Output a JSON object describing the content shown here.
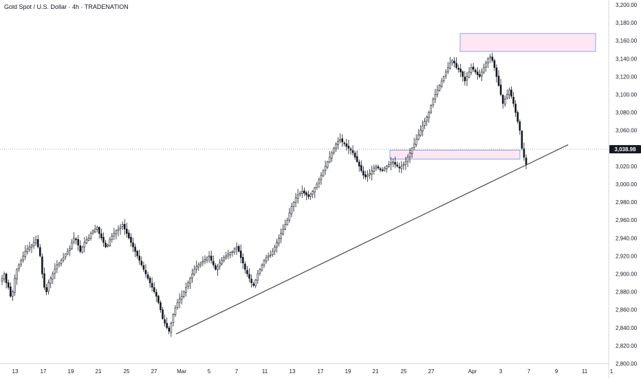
{
  "title": "Gold Spot / U.S. Dollar · 4h · TRADENATION",
  "colors": {
    "background": "#ffffff",
    "candle": "#131722",
    "zone_fill": "#fde7f2",
    "zone_stroke": "#7b8cf0",
    "trendline": "#444444",
    "price_line": "#888888",
    "price_box": "#131722"
  },
  "chart_data": {
    "type": "candlestick",
    "title": "Gold Spot / U.S. Dollar · 4h · TRADENATION",
    "y_ticks": [
      "2,800.00",
      "2,820.00",
      "2,840.00",
      "2,860.00",
      "2,880.00",
      "2,900.00",
      "2,920.00",
      "2,940.00",
      "2,960.00",
      "2,980.00",
      "3,000.00",
      "3,020.00",
      "3,040.00",
      "3,060.00",
      "3,080.00",
      "3,100.00",
      "3,120.00",
      "3,140.00",
      "3,160.00",
      "3,180.00",
      "3,200.00"
    ],
    "ylim": [
      2800,
      3200
    ],
    "x_ticks": [
      "13",
      "17",
      "19",
      "21",
      "25",
      "27",
      "Mar",
      "5",
      "7",
      "11",
      "13",
      "17",
      "19",
      "21",
      "25",
      "27",
      "Apr",
      "3",
      "7",
      "9",
      "11",
      "1"
    ],
    "current_price": 3038.98,
    "current_price_label": "3,038.98",
    "zones": [
      {
        "name": "upper-resistance-zone",
        "start": "Mar 31",
        "end": "Apr 11",
        "low": 3148,
        "high": 3168
      },
      {
        "name": "support-zone",
        "start": "Mar 24",
        "end": "Apr 4",
        "low": 3028,
        "high": 3038
      }
    ],
    "trendline": {
      "start": {
        "date": "Feb 28",
        "price": 2833
      },
      "end": {
        "date": "Apr 10",
        "price": 3044
      }
    },
    "closes": [
      2895,
      2900,
      2890,
      2885,
      2875,
      2880,
      2895,
      2905,
      2910,
      2915,
      2920,
      2925,
      2928,
      2930,
      2932,
      2935,
      2938,
      2930,
      2920,
      2900,
      2885,
      2880,
      2890,
      2895,
      2900,
      2905,
      2910,
      2912,
      2915,
      2918,
      2922,
      2925,
      2928,
      2935,
      2940,
      2938,
      2932,
      2925,
      2930,
      2935,
      2938,
      2940,
      2945,
      2948,
      2950,
      2952,
      2945,
      2940,
      2935,
      2930,
      2932,
      2938,
      2942,
      2945,
      2948,
      2950,
      2952,
      2955,
      2950,
      2945,
      2940,
      2935,
      2930,
      2925,
      2920,
      2915,
      2910,
      2905,
      2900,
      2895,
      2890,
      2885,
      2880,
      2875,
      2868,
      2860,
      2850,
      2845,
      2840,
      2836,
      2845,
      2855,
      2862,
      2868,
      2872,
      2875,
      2880,
      2885,
      2890,
      2895,
      2900,
      2905,
      2908,
      2910,
      2912,
      2914,
      2916,
      2918,
      2920,
      2915,
      2910,
      2905,
      2908,
      2912,
      2915,
      2918,
      2920,
      2922,
      2924,
      2925,
      2928,
      2930,
      2925,
      2918,
      2912,
      2905,
      2900,
      2895,
      2890,
      2887,
      2893,
      2900,
      2905,
      2910,
      2915,
      2918,
      2920,
      2921,
      2925,
      2930,
      2935,
      2940,
      2945,
      2950,
      2955,
      2960,
      2968,
      2975,
      2980,
      2985,
      2988,
      2990,
      2992,
      2990,
      2988,
      2986,
      2989,
      2992,
      2996,
      3000,
      3005,
      3010,
      3015,
      3020,
      3025,
      3030,
      3035,
      3040,
      3045,
      3048,
      3050,
      3047,
      3045,
      3042,
      3040,
      3038,
      3035,
      3030,
      3025,
      3020,
      3015,
      3010,
      3008,
      3010,
      3012,
      3015,
      3018,
      3020,
      3018,
      3016,
      3015,
      3018,
      3020,
      3022,
      3024,
      3025,
      3022,
      3020,
      3018,
      3020,
      3022,
      3025,
      3030,
      3035,
      3040,
      3045,
      3050,
      3055,
      3060,
      3065,
      3070,
      3075,
      3080,
      3088,
      3095,
      3100,
      3105,
      3110,
      3115,
      3120,
      3125,
      3130,
      3135,
      3138,
      3135,
      3130,
      3128,
      3125,
      3120,
      3115,
      3120,
      3125,
      3130,
      3128,
      3125,
      3122,
      3120,
      3125,
      3130,
      3135,
      3140,
      3142,
      3138,
      3130,
      3120,
      3110,
      3100,
      3090,
      3095,
      3100,
      3105,
      3098,
      3090,
      3080,
      3070,
      3060,
      3040,
      3030,
      3022
    ]
  }
}
